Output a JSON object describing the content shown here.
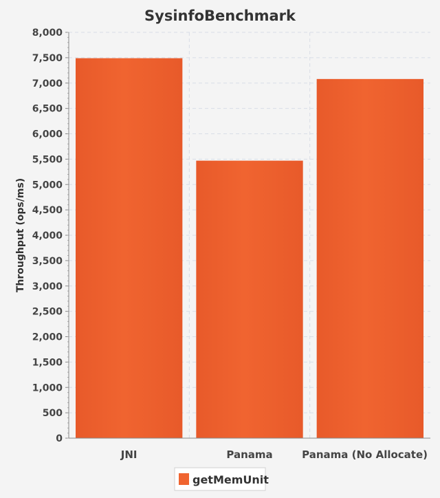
{
  "chart_data": {
    "type": "bar",
    "title": "SysinfoBenchmark",
    "xlabel": "",
    "ylabel": "Throughput (ops/ms)",
    "categories": [
      "JNI",
      "Panama",
      "Panama (No Allocate)"
    ],
    "series": [
      {
        "name": "getMemUnit",
        "values": [
          7490,
          5470,
          7080
        ]
      }
    ],
    "ylim": [
      0,
      8000
    ],
    "ytick_step": 500,
    "yticks": [
      "0",
      "500",
      "1,000",
      "1,500",
      "2,000",
      "2,500",
      "3,000",
      "3,500",
      "4,000",
      "4,500",
      "5,000",
      "5,500",
      "6,000",
      "6,500",
      "7,000",
      "7,500",
      "8,000"
    ],
    "grid": true,
    "legend_position": "bottom",
    "colors": {
      "bar": "#f06430",
      "bar_edge": "#e85a2a",
      "grid": "#d8dde6",
      "axis_text": "#444444",
      "background": "#f4f4f4"
    }
  }
}
